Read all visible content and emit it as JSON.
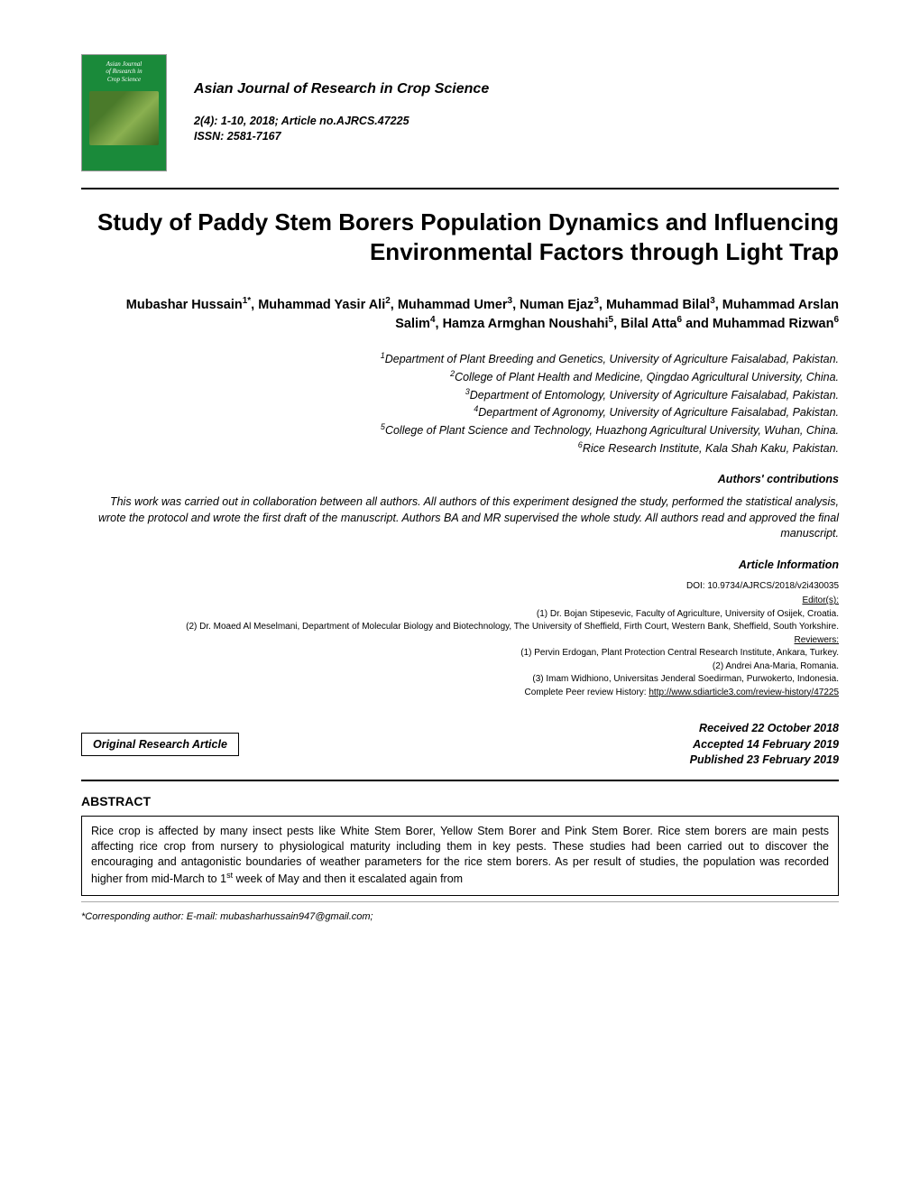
{
  "cover": {
    "title_lines": [
      "Asian Journal",
      "of Research in",
      "Crop Science"
    ]
  },
  "journal": {
    "name": "Asian Journal of Research in Crop Science",
    "issue": "2(4): 1-10, 2018; Article no.AJRCS.47225",
    "issn": "ISSN: 2581-7167"
  },
  "title": "Study of Paddy Stem Borers Population Dynamics and Influencing Environmental Factors through Light Trap",
  "authors_html": "Mubashar Hussain<sup>1*</sup>, Muhammad Yasir Ali<sup>2</sup>, Muhammad Umer<sup>3</sup>, Numan Ejaz<sup>3</sup>, Muhammad Bilal<sup>3</sup>, Muhammad Arslan Salim<sup>4</sup>, Hamza Armghan Noushahi<sup>5</sup>, Bilal Atta<sup>6</sup> and Muhammad Rizwan<sup>6</sup>",
  "affiliations": [
    {
      "n": "1",
      "text": "Department of Plant Breeding and Genetics, University of Agriculture Faisalabad, Pakistan."
    },
    {
      "n": "2",
      "text": "College of Plant Health and Medicine, Qingdao Agricultural University, China."
    },
    {
      "n": "3",
      "text": "Department of Entomology, University of Agriculture Faisalabad, Pakistan."
    },
    {
      "n": "4",
      "text": "Department of Agronomy, University of Agriculture Faisalabad, Pakistan."
    },
    {
      "n": "5",
      "text": "College of Plant Science and Technology, Huazhong Agricultural University, Wuhan, China."
    },
    {
      "n": "6",
      "text": "Rice Research Institute, Kala Shah Kaku, Pakistan."
    }
  ],
  "contrib_label": "Authors' contributions",
  "contrib_text": "This work was carried out in collaboration between all authors. All authors of this experiment designed the study, performed the statistical analysis, wrote the protocol and wrote the first draft of the manuscript. Authors BA and MR supervised the whole study. All authors read and approved the final manuscript.",
  "article_info_label": "Article Information",
  "doi": "DOI: 10.9734/AJRCS/2018/v2i430035",
  "editors_label": "Editor(s):",
  "editors": [
    "(1) Dr. Bojan Stipesevic, Faculty of Agriculture, University of Osijek, Croatia.",
    "(2) Dr. Moaed Al Meselmani, Department of Molecular Biology and Biotechnology, The University of Sheffield, Firth Court, Western Bank, Sheffield, South Yorkshire."
  ],
  "reviewers_label": "Reviewers:",
  "reviewers": [
    "(1) Pervin Erdogan, Plant Protection Central Research Institute, Ankara, Turkey.",
    "(2) Andrei Ana-Maria, Romania.",
    "(3) Imam Widhiono, Universitas Jenderal Soedirman, Purwokerto, Indonesia."
  ],
  "peer_review_label": "Complete Peer review History: ",
  "peer_review_url": "http://www.sdiarticle3.com/review-history/47225",
  "article_type": "Original Research Article",
  "dates": {
    "received": "Received 22 October 2018",
    "accepted": "Accepted 14 February 2019",
    "published": "Published 23 February 2019"
  },
  "abstract_label": "ABSTRACT",
  "abstract_text": "Rice crop is affected by many insect pests like White Stem Borer, Yellow Stem Borer and Pink Stem Borer. Rice stem borers are main pests affecting rice crop from nursery to physiological maturity including them in key pests. These studies had been carried out to discover the encouraging and antagonistic boundaries of weather parameters for the rice stem borers. As per result of studies, the population was recorded higher from mid-March to 1<sup>st</sup> week of May and then it escalated again from",
  "corresponding": "*Corresponding author: E-mail: mubasharhussain947@gmail.com;"
}
